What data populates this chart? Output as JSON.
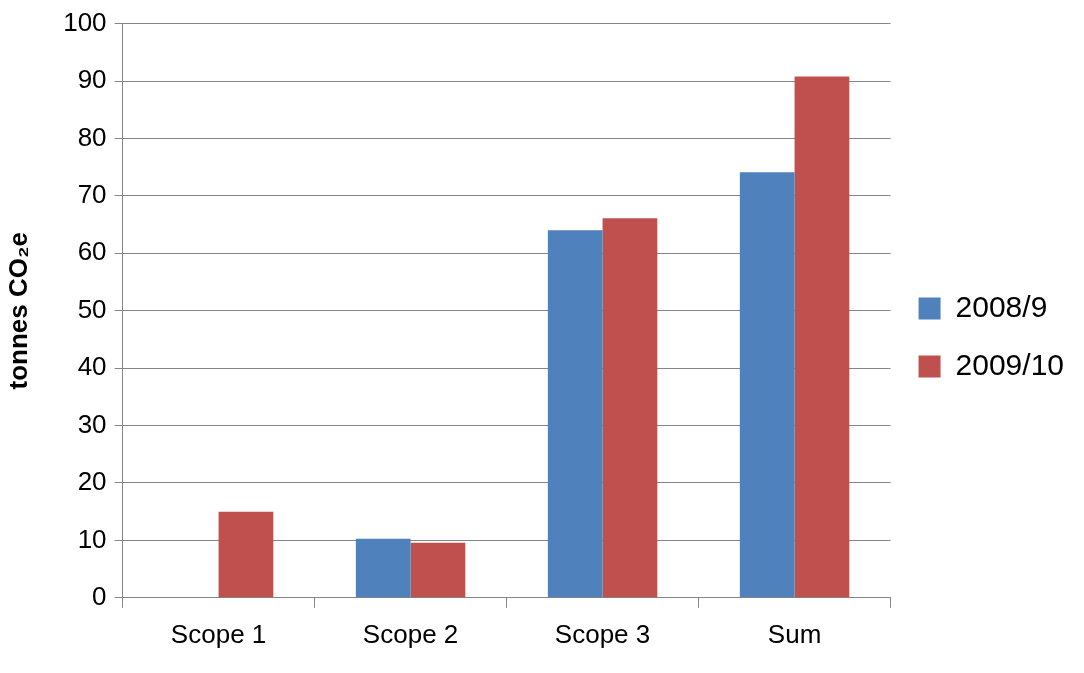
{
  "chart_data": {
    "type": "bar",
    "ylabel": "tonnes CO₂e",
    "categories": [
      "Scope 1",
      "Scope 2",
      "Scope 3",
      "Sum"
    ],
    "series": [
      {
        "name": "2008/9",
        "color": "#4f81bd",
        "values": [
          0,
          10.3,
          64,
          74.1
        ]
      },
      {
        "name": "2009/10",
        "color": "#c0504d",
        "values": [
          15,
          9.6,
          66.1,
          90.8
        ]
      }
    ],
    "ylim": [
      0,
      100
    ],
    "yticks": [
      0,
      10,
      20,
      30,
      40,
      50,
      60,
      70,
      80,
      90,
      100
    ],
    "grid": "y",
    "legend": "right"
  }
}
